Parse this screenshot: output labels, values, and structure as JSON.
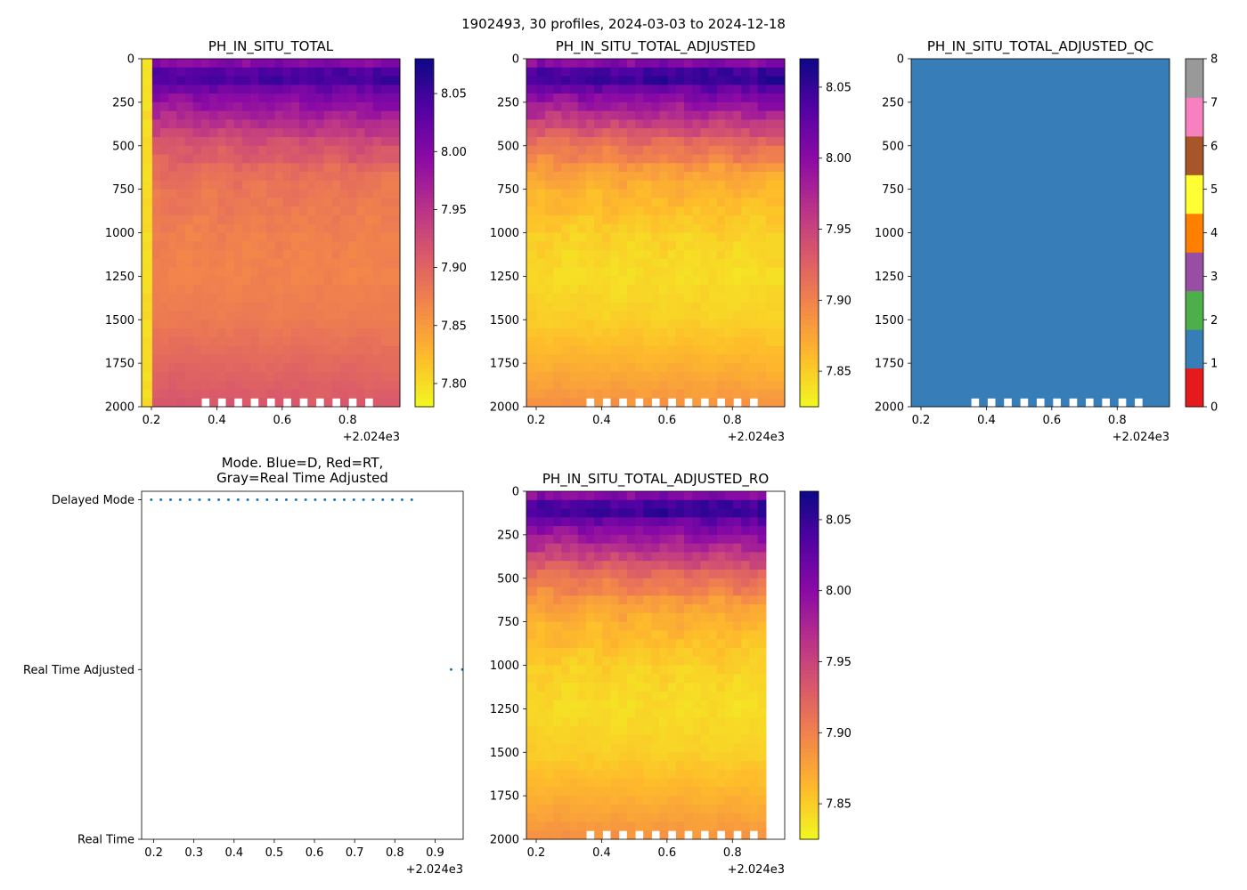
{
  "figure": {
    "suptitle": "1902493, 30 profiles, 2024-03-03 to 2024-12-18"
  },
  "chart_data": [
    {
      "id": "ph",
      "type": "heatmap",
      "title": "PH_IN_SITU_TOTAL",
      "colormap": "plasma_r",
      "x_ticks": [
        "0.2",
        "0.4",
        "0.6",
        "0.8"
      ],
      "x_tick_values": [
        0.2,
        0.4,
        0.6,
        0.8
      ],
      "xlim": [
        0.17,
        0.96
      ],
      "x_offset": "+2.024e3",
      "y_ticks": [
        "0",
        "250",
        "500",
        "750",
        "1000",
        "1250",
        "1500",
        "1750",
        "2000"
      ],
      "y_tick_values": [
        0,
        250,
        500,
        750,
        1000,
        1250,
        1500,
        1750,
        2000
      ],
      "ylim": [
        2000,
        0
      ],
      "colorbar": {
        "range": [
          7.78,
          8.08
        ],
        "ticks": [
          "7.80",
          "7.85",
          "7.90",
          "7.95",
          "8.00",
          "8.05"
        ],
        "tick_values": [
          7.8,
          7.85,
          7.9,
          7.95,
          8.0,
          8.05
        ]
      },
      "profile_x": [
        0.19,
        0.215,
        0.24,
        0.265,
        0.29,
        0.315,
        0.34,
        0.365,
        0.39,
        0.415,
        0.44,
        0.465,
        0.49,
        0.515,
        0.54,
        0.565,
        0.59,
        0.615,
        0.64,
        0.665,
        0.69,
        0.715,
        0.74,
        0.765,
        0.79,
        0.815,
        0.84,
        0.865,
        0.89,
        0.915
      ],
      "depth_profile": {
        "depth": [
          0,
          100,
          200,
          350,
          500,
          750,
          1000,
          1250,
          1500,
          1750,
          2000
        ],
        "value": [
          7.975,
          8.05,
          8.0,
          7.955,
          7.91,
          7.885,
          7.875,
          7.872,
          7.88,
          7.898,
          7.915
        ]
      },
      "offset_from_adjusted": 0.0,
      "first_profile_value": 7.8
    },
    {
      "id": "ph_adj",
      "type": "heatmap",
      "title": "PH_IN_SITU_TOTAL_ADJUSTED",
      "colormap": "plasma_r",
      "x_ticks": [
        "0.2",
        "0.4",
        "0.6",
        "0.8"
      ],
      "x_tick_values": [
        0.2,
        0.4,
        0.6,
        0.8
      ],
      "xlim": [
        0.17,
        0.96
      ],
      "x_offset": "+2.024e3",
      "y_ticks": [
        "0",
        "250",
        "500",
        "750",
        "1000",
        "1250",
        "1500",
        "1750",
        "2000"
      ],
      "y_tick_values": [
        0,
        250,
        500,
        750,
        1000,
        1250,
        1500,
        1750,
        2000
      ],
      "ylim": [
        2000,
        0
      ],
      "colorbar": {
        "range": [
          7.825,
          8.07
        ],
        "ticks": [
          "7.85",
          "7.90",
          "7.95",
          "8.00",
          "8.05"
        ],
        "tick_values": [
          7.85,
          7.9,
          7.95,
          8.0,
          8.05
        ]
      },
      "depth_profile": {
        "depth": [
          0,
          100,
          200,
          350,
          500,
          750,
          1000,
          1250,
          1500,
          1750,
          2000
        ],
        "value": [
          7.98,
          8.055,
          8.005,
          7.955,
          7.905,
          7.868,
          7.85,
          7.843,
          7.85,
          7.868,
          7.89
        ]
      }
    },
    {
      "id": "qc",
      "type": "heatmap",
      "title": "PH_IN_SITU_TOTAL_ADJUSTED_QC",
      "colormap": "Set1 (categorical)",
      "x_ticks": [
        "0.2",
        "0.4",
        "0.6",
        "0.8"
      ],
      "x_tick_values": [
        0.2,
        0.4,
        0.6,
        0.8
      ],
      "xlim": [
        0.17,
        0.96
      ],
      "x_offset": "+2.024e3",
      "y_ticks": [
        "0",
        "250",
        "500",
        "750",
        "1000",
        "1250",
        "1500",
        "1750",
        "2000"
      ],
      "y_tick_values": [
        0,
        250,
        500,
        750,
        1000,
        1250,
        1500,
        1750,
        2000
      ],
      "ylim": [
        2000,
        0
      ],
      "qc_value": 1,
      "colorbar": {
        "range": [
          0,
          8
        ],
        "ticks": [
          "0",
          "1",
          "2",
          "3",
          "4",
          "5",
          "6",
          "7",
          "8"
        ],
        "tick_values": [
          0,
          1,
          2,
          3,
          4,
          5,
          6,
          7,
          8
        ],
        "colors": [
          "#e41a1c",
          "#377eb8",
          "#4daf4a",
          "#984ea3",
          "#ff7f00",
          "#ffff33",
          "#a65628",
          "#f781bf",
          "#999999"
        ]
      }
    },
    {
      "id": "mode",
      "type": "scatter",
      "title_lines": [
        "Mode. Blue=D, Red=RT,",
        "Gray=Real Time Adjusted"
      ],
      "x_ticks": [
        "0.2",
        "0.3",
        "0.4",
        "0.5",
        "0.6",
        "0.7",
        "0.8",
        "0.9"
      ],
      "x_tick_values": [
        0.2,
        0.3,
        0.4,
        0.5,
        0.6,
        0.7,
        0.8,
        0.9
      ],
      "xlim": [
        0.17,
        0.97
      ],
      "x_offset": "+2.024e3",
      "y_ticks": [
        "Real Time",
        "Real Time Adjusted",
        "Delayed Mode"
      ],
      "y_tick_values": [
        0,
        1,
        2
      ],
      "ylim": [
        0,
        2.05
      ],
      "point_color": "#1f77b4",
      "series": [
        {
          "name": "Delayed Mode",
          "level": 2,
          "x": [
            0.194,
            0.218,
            0.242,
            0.266,
            0.29,
            0.314,
            0.338,
            0.362,
            0.386,
            0.41,
            0.434,
            0.458,
            0.482,
            0.506,
            0.53,
            0.554,
            0.578,
            0.602,
            0.626,
            0.65,
            0.674,
            0.698,
            0.722,
            0.746,
            0.77,
            0.794,
            0.818,
            0.842
          ]
        },
        {
          "name": "Real Time Adjusted",
          "level": 1,
          "x": [
            0.94,
            0.968
          ]
        }
      ]
    },
    {
      "id": "ro",
      "type": "heatmap",
      "title": "PH_IN_SITU_TOTAL_ADJUSTED_RO",
      "colormap": "plasma_r",
      "x_ticks": [
        "0.2",
        "0.4",
        "0.6",
        "0.8"
      ],
      "x_tick_values": [
        0.2,
        0.4,
        0.6,
        0.8
      ],
      "xlim": [
        0.17,
        0.96
      ],
      "x_offset": "+2.024e3",
      "y_ticks": [
        "0",
        "250",
        "500",
        "750",
        "1000",
        "1250",
        "1500",
        "1750",
        "2000"
      ],
      "y_tick_values": [
        0,
        250,
        500,
        750,
        1000,
        1250,
        1500,
        1750,
        2000
      ],
      "ylim": [
        2000,
        0
      ],
      "colorbar": {
        "range": [
          7.825,
          8.07
        ],
        "ticks": [
          "7.85",
          "7.90",
          "7.95",
          "8.00",
          "8.05"
        ],
        "tick_values": [
          7.85,
          7.9,
          7.95,
          8.0,
          8.05
        ]
      },
      "depth_profile": {
        "depth": [
          0,
          100,
          200,
          350,
          500,
          750,
          1000,
          1250,
          1500,
          1750,
          2000
        ],
        "value": [
          7.98,
          8.055,
          8.005,
          7.955,
          7.905,
          7.868,
          7.85,
          7.843,
          7.85,
          7.868,
          7.89
        ]
      }
    }
  ]
}
